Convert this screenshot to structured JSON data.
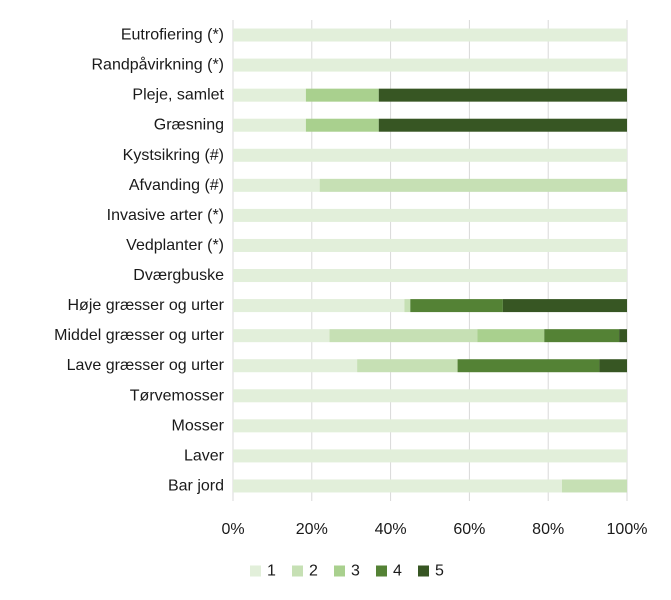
{
  "chart_data": {
    "type": "bar",
    "orientation": "horizontal",
    "stacked": true,
    "categories": [
      "Eutrofiering (*)",
      "Randpåvirkning (*)",
      "Pleje, samlet",
      "Græsning",
      "Kystsikring (#)",
      "Afvanding (#)",
      "Invasive arter (*)",
      "Vedplanter (*)",
      "Dværgbuske",
      "Høje græsser og urter",
      "Middel græsser og urter",
      "Lave græsser og urter",
      "Tørvemosser",
      "Mosser",
      "Laver",
      "Bar jord"
    ],
    "series": [
      {
        "name": "1",
        "color": "#e2efda",
        "values": [
          100,
          100,
          18.5,
          18.5,
          100,
          22,
          100,
          100,
          100,
          43.5,
          24.5,
          31.5,
          100,
          100,
          100,
          83.5
        ]
      },
      {
        "name": "2",
        "color": "#c6e0b4",
        "values": [
          0,
          0,
          0,
          0,
          0,
          78,
          0,
          0,
          0,
          1.5,
          37.5,
          25.5,
          0,
          0,
          0,
          16.5
        ]
      },
      {
        "name": "3",
        "color": "#a9d08e",
        "values": [
          0,
          0,
          18.5,
          18.5,
          0,
          0,
          0,
          0,
          0,
          0,
          17,
          0,
          0,
          0,
          0,
          0
        ]
      },
      {
        "name": "4",
        "color": "#548235",
        "values": [
          0,
          0,
          0,
          0,
          0,
          0,
          0,
          0,
          0,
          23.5,
          19,
          36,
          0,
          0,
          0,
          0
        ]
      },
      {
        "name": "5",
        "color": "#375623",
        "values": [
          0,
          0,
          63,
          63,
          0,
          0,
          0,
          0,
          0,
          31.5,
          2,
          7,
          0,
          0,
          0,
          0
        ]
      }
    ],
    "x_ticks": [
      "0%",
      "20%",
      "40%",
      "60%",
      "80%",
      "100%"
    ],
    "xlim": [
      0,
      100
    ],
    "grid": true,
    "legend_position": "bottom",
    "title": "",
    "xlabel": "",
    "ylabel": ""
  }
}
